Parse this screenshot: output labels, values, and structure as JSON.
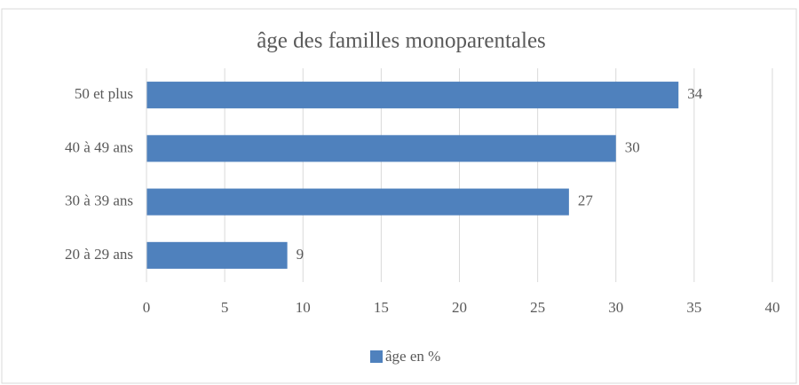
{
  "chart_data": {
    "type": "bar",
    "orientation": "horizontal",
    "title": "âge des familles monoparentales",
    "categories": [
      "50 et plus",
      "40 à 49 ans",
      "30 à 39 ans",
      "20 à 29 ans"
    ],
    "series": [
      {
        "name": "âge en %",
        "color": "#4f81bd",
        "values": [
          34,
          30,
          27,
          9
        ]
      }
    ],
    "xlim": [
      0,
      40
    ],
    "xticks": [
      0,
      5,
      10,
      15,
      20,
      25,
      30,
      35,
      40
    ],
    "grid": true,
    "legend": "bottom"
  }
}
